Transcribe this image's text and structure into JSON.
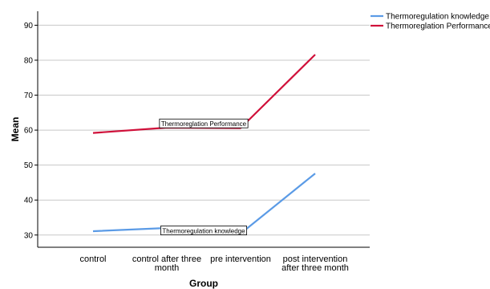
{
  "chart_data": {
    "type": "line",
    "title": "",
    "xlabel": "Group",
    "ylabel": "Mean",
    "categories": [
      [
        "control"
      ],
      [
        "control after three",
        "month"
      ],
      [
        "pre intervention"
      ],
      [
        "post intervention",
        "after three month"
      ]
    ],
    "ylim": [
      26.5,
      94
    ],
    "yticks": [
      30,
      40,
      50,
      60,
      70,
      80,
      90
    ],
    "grid": true,
    "legend_position": "top-right",
    "series": [
      {
        "name": "Thermoregulation knowledge",
        "color": "#5b9be6",
        "values": [
          31.1,
          32.0,
          30.4,
          47.6
        ],
        "annotation": "Thermoregulation knowledge"
      },
      {
        "name": "Thermoreglation Performance",
        "color": "#d0103a",
        "values": [
          59.2,
          60.7,
          60.6,
          81.6
        ],
        "annotation": "Thermoreglation Performance"
      }
    ]
  }
}
